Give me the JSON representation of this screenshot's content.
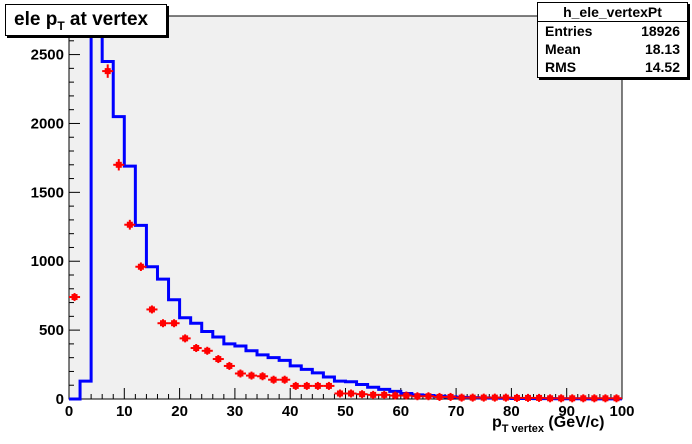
{
  "chart_data": {
    "type": "histogram",
    "title": {
      "main": "ele p",
      "sub": "T",
      "rest": " at vertex"
    },
    "xlabel": {
      "main": "p",
      "sub": "T vertex",
      "rest": "  (GeV/c)"
    },
    "ylabel": "",
    "xlim": [
      0,
      100
    ],
    "ylim": [
      0,
      2780
    ],
    "xticks": [
      0,
      10,
      20,
      30,
      40,
      50,
      60,
      70,
      80,
      90,
      100
    ],
    "yticks": [
      0,
      500,
      1000,
      1500,
      2000,
      2500
    ],
    "bin_width": 2,
    "stats": {
      "name": "h_ele_vertexPt",
      "rows": [
        {
          "label": "Entries",
          "value": "18926"
        },
        {
          "label": "Mean",
          "value": "18.13"
        },
        {
          "label": "RMS",
          "value": "14.52"
        }
      ]
    },
    "series": [
      {
        "kind": "step",
        "color": "#0000ff",
        "values": [
          0,
          130,
          2700,
          2450,
          2050,
          1690,
          1260,
          960,
          870,
          720,
          590,
          550,
          490,
          450,
          400,
          385,
          350,
          320,
          300,
          280,
          240,
          215,
          190,
          160,
          130,
          125,
          105,
          85,
          70,
          55,
          40,
          30,
          25,
          20,
          15,
          12,
          10,
          8,
          6,
          5,
          4,
          4,
          3,
          3,
          2,
          2,
          2,
          1,
          1,
          1
        ]
      },
      {
        "kind": "points",
        "color": "#ff0000",
        "values": [
          740,
          0,
          0,
          2380,
          1700,
          1265,
          960,
          650,
          550,
          550,
          440,
          370,
          350,
          290,
          240,
          185,
          170,
          165,
          140,
          140,
          95,
          95,
          95,
          95,
          40,
          40,
          35,
          30,
          30,
          25,
          25,
          20,
          20,
          15,
          15,
          10,
          10,
          10,
          10,
          10,
          8,
          8,
          8,
          5,
          5,
          5,
          5,
          5,
          5,
          5
        ]
      }
    ]
  }
}
